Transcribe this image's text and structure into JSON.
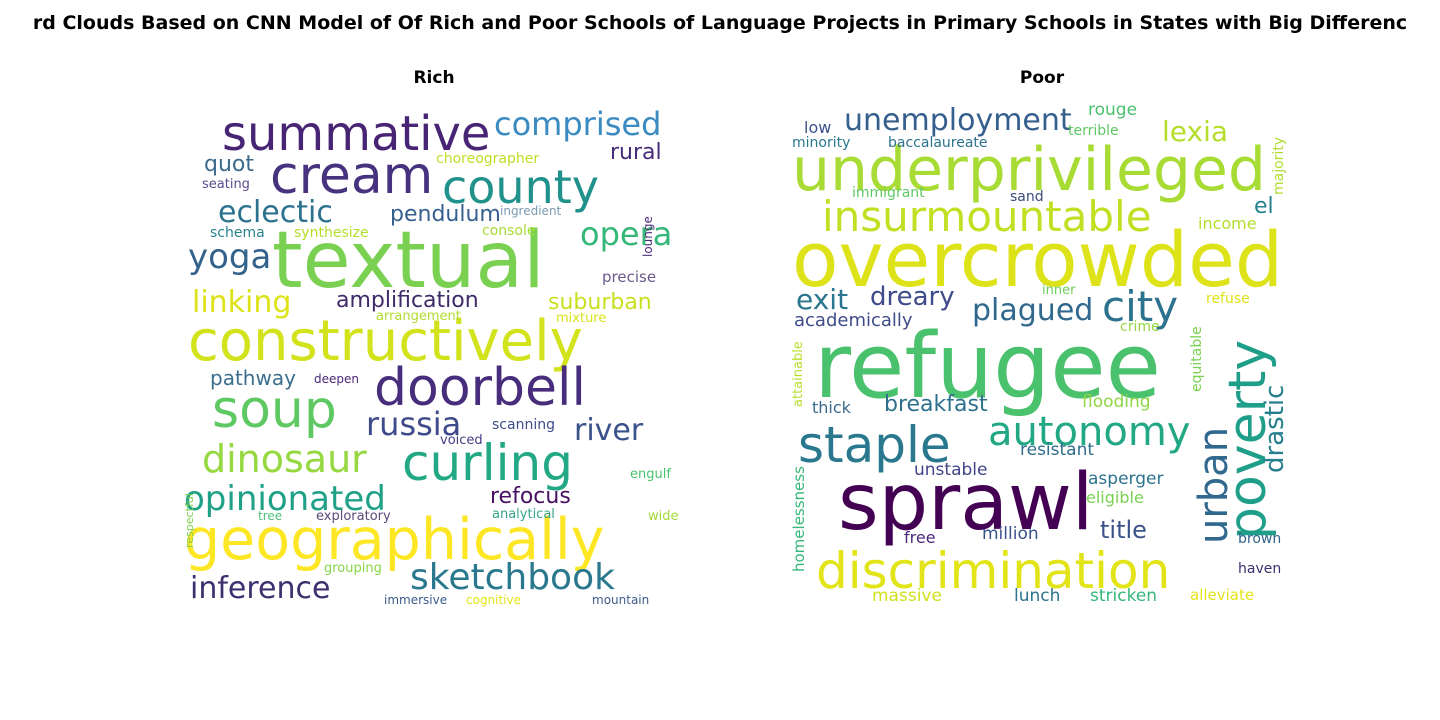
{
  "chart_data": {
    "type": "wordcloud",
    "title": "rd Clouds Based on CNN Model of Of Rich and Poor Schools of Language Projects in Primary Schools in States with Big Differenc",
    "panels": [
      {
        "title": "Rich",
        "words": [
          {
            "text": "textual",
            "color": "#7ad151"
          },
          {
            "text": "constructively",
            "color": "#d2e21b"
          },
          {
            "text": "geographically",
            "color": "#fde725"
          },
          {
            "text": "doorbell",
            "color": "#472d7b"
          },
          {
            "text": "cream",
            "color": "#46327e"
          },
          {
            "text": "summative",
            "color": "#482475"
          },
          {
            "text": "curling",
            "color": "#22a884"
          },
          {
            "text": "county",
            "color": "#21918c"
          },
          {
            "text": "soup",
            "color": "#5ec962"
          },
          {
            "text": "dinosaur",
            "color": "#95d840"
          },
          {
            "text": "sketchbook",
            "color": "#2a788e"
          },
          {
            "text": "opinionated",
            "color": "#1fa187"
          },
          {
            "text": "comprised",
            "color": "#3b8bc2"
          },
          {
            "text": "opera",
            "color": "#35b779"
          },
          {
            "text": "yoga",
            "color": "#33638d"
          },
          {
            "text": "russia",
            "color": "#3e4a89"
          },
          {
            "text": "eclectic",
            "color": "#2c728e"
          },
          {
            "text": "inference",
            "color": "#3e2f6f"
          },
          {
            "text": "river",
            "color": "#3b528b"
          },
          {
            "text": "linking",
            "color": "#dde318"
          },
          {
            "text": "amplification",
            "color": "#3f2a6a"
          },
          {
            "text": "pendulum",
            "color": "#355f8d"
          },
          {
            "text": "refocus",
            "color": "#471063"
          },
          {
            "text": "suburban",
            "color": "#c8e020"
          },
          {
            "text": "pathway",
            "color": "#3b6e8c"
          },
          {
            "text": "quot",
            "color": "#3b6a8c"
          },
          {
            "text": "rural",
            "color": "#472c7a"
          },
          {
            "text": "choreographer",
            "color": "#bddf26"
          },
          {
            "text": "precise",
            "color": "#6b5a8d"
          },
          {
            "text": "schema",
            "color": "#26828e"
          },
          {
            "text": "synthesize",
            "color": "#b5de2b"
          },
          {
            "text": "console",
            "color": "#a8db34"
          },
          {
            "text": "arrangement",
            "color": "#b0dd2f"
          },
          {
            "text": "mixture",
            "color": "#d8e219"
          },
          {
            "text": "seating",
            "color": "#5b4a8c"
          },
          {
            "text": "ingredient",
            "color": "#7a9ab0"
          },
          {
            "text": "lounge",
            "color": "#4b2a7a"
          },
          {
            "text": "deepen",
            "color": "#482878"
          },
          {
            "text": "scanning",
            "color": "#3e4c8a"
          },
          {
            "text": "voiced",
            "color": "#433e85"
          },
          {
            "text": "respectful",
            "color": "#7ad151"
          },
          {
            "text": "engulf",
            "color": "#4ac16d"
          },
          {
            "text": "tree",
            "color": "#4fc07b"
          },
          {
            "text": "exploratory",
            "color": "#5a4a7c"
          },
          {
            "text": "analytical",
            "color": "#34a28a"
          },
          {
            "text": "wide",
            "color": "#a0da39"
          },
          {
            "text": "grouping",
            "color": "#86d549"
          },
          {
            "text": "immersive",
            "color": "#3b5a8b"
          },
          {
            "text": "cognitive",
            "color": "#e5e419"
          },
          {
            "text": "mountain",
            "color": "#3d5a8a"
          }
        ]
      },
      {
        "title": "Poor",
        "words": [
          {
            "text": "overcrowded",
            "color": "#dde318"
          },
          {
            "text": "refugee",
            "color": "#4ac16d"
          },
          {
            "text": "underprivileged",
            "color": "#a8db34"
          },
          {
            "text": "sprawl",
            "color": "#440154"
          },
          {
            "text": "insurmountable",
            "color": "#c2df23"
          },
          {
            "text": "discrimination",
            "color": "#e2e418"
          },
          {
            "text": "poverty",
            "color": "#1f9e89"
          },
          {
            "text": "staple",
            "color": "#2a788e"
          },
          {
            "text": "autonomy",
            "color": "#22a884"
          },
          {
            "text": "urban",
            "color": "#31688e"
          },
          {
            "text": "unemployment",
            "color": "#355f8d"
          },
          {
            "text": "city",
            "color": "#2c728e"
          },
          {
            "text": "plagued",
            "color": "#31688e"
          },
          {
            "text": "lexia",
            "color": "#b5de2b"
          },
          {
            "text": "drastic",
            "color": "#277f8e"
          },
          {
            "text": "exit",
            "color": "#2a768e"
          },
          {
            "text": "dreary",
            "color": "#3e4a89"
          },
          {
            "text": "breakfast",
            "color": "#2d708e"
          },
          {
            "text": "title",
            "color": "#3b528b"
          },
          {
            "text": "academically",
            "color": "#3e4c8a"
          },
          {
            "text": "resistant",
            "color": "#2f6b8e"
          },
          {
            "text": "unstable",
            "color": "#414487"
          },
          {
            "text": "asperger",
            "color": "#2c728e"
          },
          {
            "text": "eligible",
            "color": "#7ad151"
          },
          {
            "text": "million",
            "color": "#3b528b"
          },
          {
            "text": "massive",
            "color": "#d0e11c"
          },
          {
            "text": "lunch",
            "color": "#2c728e"
          },
          {
            "text": "stricken",
            "color": "#35b779"
          },
          {
            "text": "alleviate",
            "color": "#e5e419"
          },
          {
            "text": "flooding",
            "color": "#8ed645"
          },
          {
            "text": "thick",
            "color": "#3b6a8c"
          },
          {
            "text": "free",
            "color": "#482878"
          },
          {
            "text": "el",
            "color": "#26828e"
          },
          {
            "text": "income",
            "color": "#b5de2b"
          },
          {
            "text": "majority",
            "color": "#b0dd2f"
          },
          {
            "text": "rouge",
            "color": "#4ac16d"
          },
          {
            "text": "terrible",
            "color": "#5ec962"
          },
          {
            "text": "low",
            "color": "#3b528b"
          },
          {
            "text": "minority",
            "color": "#2a788e"
          },
          {
            "text": "baccalaureate",
            "color": "#2c728e"
          },
          {
            "text": "immigrant",
            "color": "#5ec962"
          },
          {
            "text": "sand",
            "color": "#3b4c7a"
          },
          {
            "text": "inner",
            "color": "#6ece58"
          },
          {
            "text": "refuse",
            "color": "#dde318"
          },
          {
            "text": "crime",
            "color": "#95d840"
          },
          {
            "text": "equitable",
            "color": "#7ad151"
          },
          {
            "text": "attainable",
            "color": "#b8de29"
          },
          {
            "text": "homelessness",
            "color": "#35b779"
          },
          {
            "text": "brown",
            "color": "#33638d"
          },
          {
            "text": "haven",
            "color": "#3e2f6f"
          }
        ]
      }
    ]
  }
}
